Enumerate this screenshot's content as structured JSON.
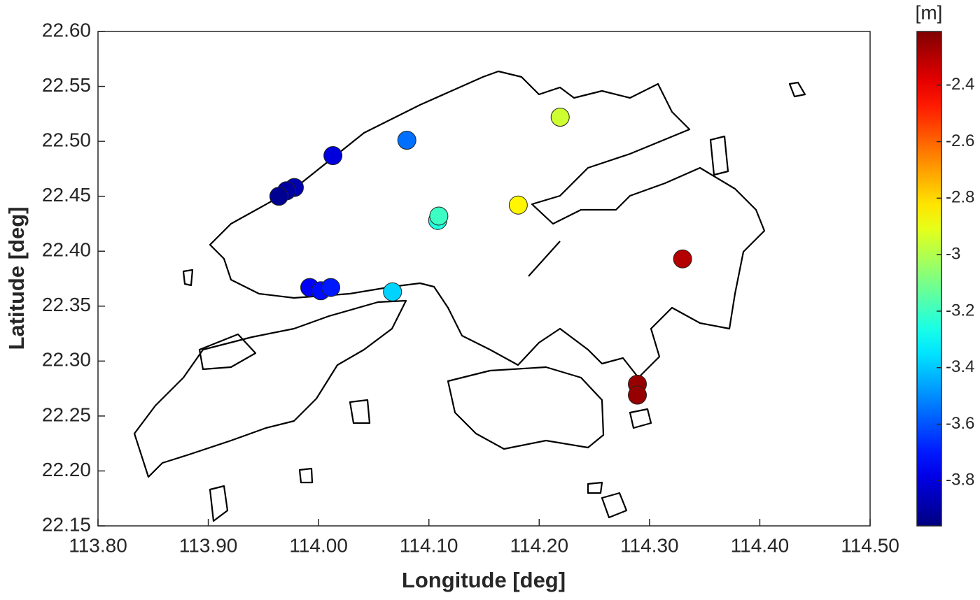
{
  "chart_data": {
    "type": "scatter",
    "x_label": "Longitude [deg]",
    "y_label": "Latitude [deg]",
    "colorbar_label": "[m]",
    "colormap": "jet",
    "x": [
      114.013,
      114.08,
      114.219,
      113.978,
      113.971,
      113.964,
      114.181,
      114.108,
      114.109,
      113.992,
      114.002,
      114.011,
      114.067,
      114.33,
      114.289,
      114.289
    ],
    "y": [
      22.487,
      22.501,
      22.522,
      22.458,
      22.455,
      22.45,
      22.442,
      22.428,
      22.432,
      22.367,
      22.364,
      22.367,
      22.363,
      22.393,
      22.279,
      22.269
    ],
    "values": [
      -3.8,
      -3.55,
      -2.95,
      -3.88,
      -3.9,
      -3.93,
      -2.85,
      -3.25,
      -3.2,
      -3.75,
      -3.72,
      -3.7,
      -3.38,
      -2.3,
      -2.25,
      -2.25
    ],
    "xlim": [
      113.8,
      114.5
    ],
    "ylim": [
      22.15,
      22.6
    ],
    "clim": [
      -3.96,
      -2.21
    ],
    "xticks": [
      {
        "value": 113.8,
        "label": "113.80"
      },
      {
        "value": 113.9,
        "label": "113.90"
      },
      {
        "value": 114.0,
        "label": "114.00"
      },
      {
        "value": 114.1,
        "label": "114.10"
      },
      {
        "value": 114.2,
        "label": "114.20"
      },
      {
        "value": 114.3,
        "label": "114.30"
      },
      {
        "value": 114.4,
        "label": "114.40"
      },
      {
        "value": 114.5,
        "label": "114.50"
      }
    ],
    "yticks": [
      22.15,
      {
        "value": 22.2,
        "label": "22.20"
      },
      22.25,
      {
        "value": 22.3,
        "label": "22.30"
      },
      22.35,
      {
        "value": 22.4,
        "label": "22.40"
      },
      22.45,
      {
        "value": 22.5,
        "label": "22.50"
      },
      22.55,
      {
        "value": 22.6,
        "label": "22.60"
      }
    ],
    "cticks": [
      -3.8,
      -3.6,
      -3.4,
      -3.2,
      -3,
      -2.8,
      -2.6,
      -2.4
    ]
  }
}
